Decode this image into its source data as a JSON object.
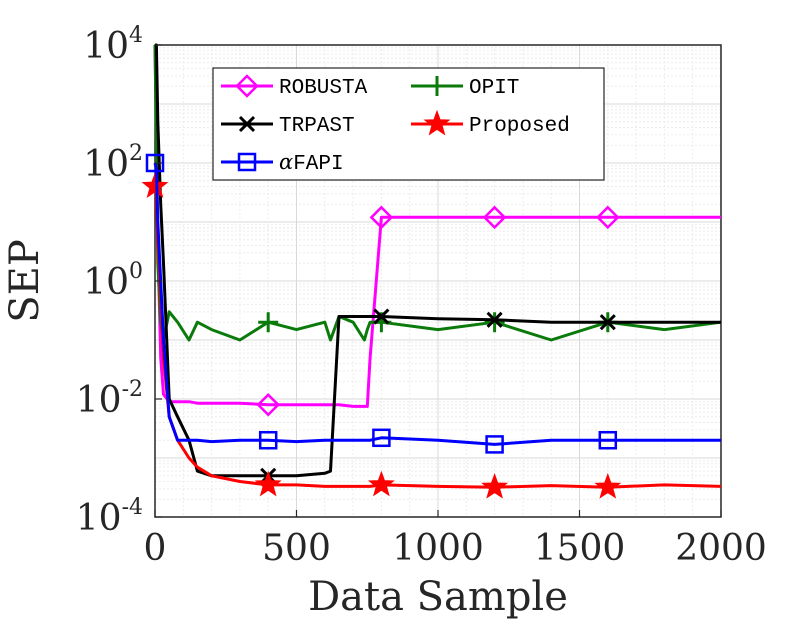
{
  "chart_data": {
    "type": "line",
    "title": "",
    "xlabel": "Data Sample",
    "ylabel": "SEP",
    "xlim": [
      0,
      2000
    ],
    "ylim": [
      0.0001,
      10000
    ],
    "yscale": "log",
    "grid": true,
    "legend_position": "top",
    "x_ticks": [
      "0",
      "500",
      "1000",
      "1500",
      "2000"
    ],
    "y_ticks": [
      {
        "base": "10",
        "exp": "-4"
      },
      {
        "base": "10",
        "exp": "-2"
      },
      {
        "base": "10",
        "exp": "0"
      },
      {
        "base": "10",
        "exp": "2"
      },
      {
        "base": "10",
        "exp": "4"
      }
    ],
    "x": [
      0,
      5,
      10,
      20,
      30,
      50,
      80,
      120,
      150,
      200,
      300,
      400,
      500,
      600,
      620,
      650,
      700,
      740,
      750,
      760,
      800,
      1000,
      1200,
      1400,
      1600,
      1800,
      2000
    ],
    "series": [
      {
        "name": "ROBUSTA",
        "color": "#ff00ff",
        "marker": "diamond",
        "marker_x": [
          400,
          800,
          1200,
          1600
        ],
        "values": [
          10000,
          300,
          5,
          0.05,
          0.012,
          0.009,
          0.009,
          0.009,
          0.0085,
          0.0085,
          0.0085,
          0.008,
          0.008,
          0.008,
          0.008,
          0.008,
          0.0075,
          0.0075,
          0.0075,
          0.05,
          12,
          12,
          12,
          12,
          12,
          12,
          12
        ]
      },
      {
        "name": "OPIT",
        "color": "#0a7a0a",
        "marker": "plus",
        "marker_x": [
          400,
          800,
          1200,
          1600
        ],
        "values": [
          10000,
          200,
          2,
          0.2,
          0.1,
          0.3,
          0.2,
          0.1,
          0.2,
          0.15,
          0.1,
          0.2,
          0.15,
          0.2,
          0.1,
          0.25,
          0.2,
          0.1,
          0.15,
          0.2,
          0.2,
          0.15,
          0.2,
          0.1,
          0.2,
          0.15,
          0.2
        ]
      },
      {
        "name": "TRPAST",
        "color": "#000000",
        "marker": "x",
        "marker_x": [
          400,
          800,
          1200,
          1600
        ],
        "values": [
          10000,
          10000,
          500,
          20,
          2,
          0.01,
          0.005,
          0.002,
          0.0006,
          0.0005,
          0.0005,
          0.0005,
          0.0005,
          0.00055,
          0.0006,
          0.25,
          0.25,
          0.25,
          0.25,
          0.25,
          0.25,
          0.23,
          0.22,
          0.2,
          0.2,
          0.2,
          0.2
        ]
      },
      {
        "name": "Proposed",
        "color": "#ff0000",
        "marker": "star",
        "marker_x": [
          0,
          400,
          800,
          1200,
          1600
        ],
        "values": [
          40,
          30,
          5,
          0.5,
          0.05,
          0.005,
          0.002,
          0.001,
          0.0007,
          0.0005,
          0.0004,
          0.00035,
          0.00035,
          0.00033,
          0.00033,
          0.00033,
          0.00033,
          0.00033,
          0.00033,
          0.00033,
          0.00035,
          0.00033,
          0.00032,
          0.00034,
          0.00032,
          0.00035,
          0.00033
        ]
      },
      {
        "name": "αFAPI",
        "name_prefix": "α",
        "name_rest": "FAPI",
        "color": "#0000ff",
        "marker": "square",
        "marker_x": [
          0,
          400,
          800,
          1200,
          1600
        ],
        "values": [
          100,
          80,
          10,
          1,
          0.1,
          0.005,
          0.002,
          0.002,
          0.002,
          0.0019,
          0.002,
          0.002,
          0.0019,
          0.002,
          0.002,
          0.002,
          0.002,
          0.002,
          0.002,
          0.002,
          0.0022,
          0.002,
          0.0017,
          0.002,
          0.002,
          0.002,
          0.002
        ]
      }
    ]
  }
}
